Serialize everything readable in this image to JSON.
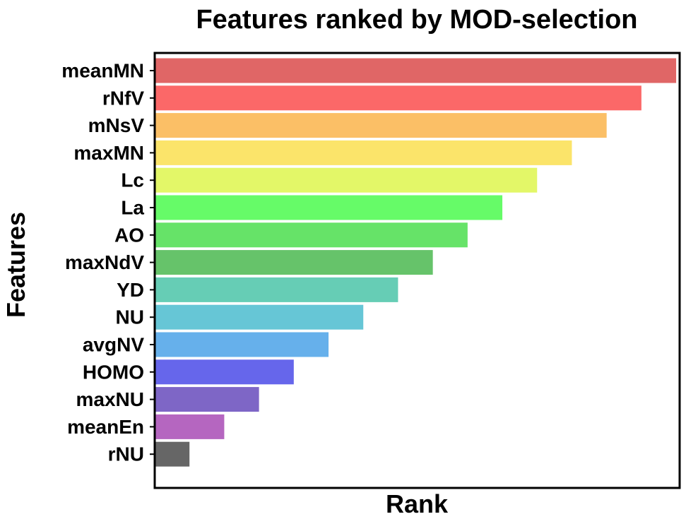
{
  "chart_data": {
    "type": "bar",
    "orientation": "horizontal",
    "title": "Features ranked by MOD-selection",
    "xlabel": "Rank",
    "ylabel": "Features",
    "categories": [
      "meanMN",
      "rNfV",
      "mNsV",
      "maxMN",
      "Lc",
      "La",
      "AO",
      "maxNdV",
      "YD",
      "NU",
      "avgNV",
      "HOMO",
      "maxNU",
      "meanEn",
      "rNU"
    ],
    "values": [
      15,
      14,
      13,
      12,
      11,
      10,
      9,
      8,
      7,
      6,
      5,
      4,
      3,
      2,
      1
    ],
    "colors": [
      "#e06666",
      "#fb6868",
      "#fbbf66",
      "#fbe46a",
      "#e3f768",
      "#66fb68",
      "#66e368",
      "#66c36a",
      "#66cdb5",
      "#66c6d6",
      "#66b0eb",
      "#6666eb",
      "#7e66c6",
      "#b566c0",
      "#666666"
    ],
    "xlim": [
      0,
      15.1
    ],
    "x_ticks_shown": false,
    "grid": false,
    "legend": "none"
  }
}
